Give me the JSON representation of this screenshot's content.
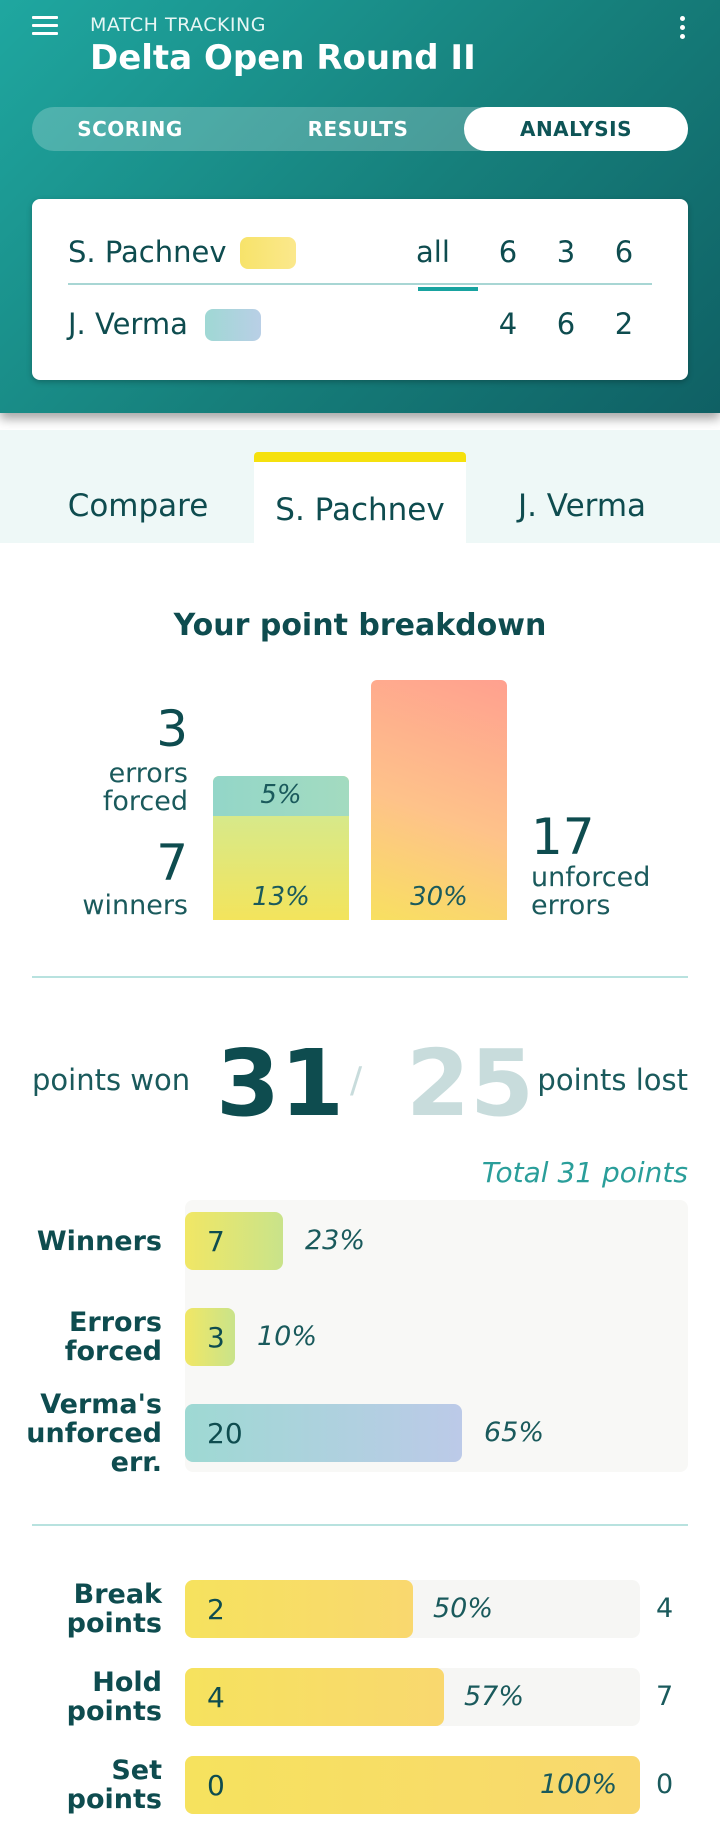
{
  "header": {
    "subtitle": "MATCH TRACKING",
    "title": "Delta Open Round II",
    "tabs": [
      {
        "label": "SCORING"
      },
      {
        "label": "RESULTS"
      },
      {
        "label": "ANALYSIS",
        "active": true
      }
    ]
  },
  "scoreboard": {
    "all_label": "all",
    "players": [
      {
        "name": "S. Pachnev",
        "color": "#f7e36a",
        "sets": [
          "6",
          "3",
          "6"
        ]
      },
      {
        "name": "J. Verma",
        "color": "#a8d6de",
        "sets": [
          "4",
          "6",
          "2"
        ]
      }
    ]
  },
  "player_tabs": [
    {
      "label": "Compare"
    },
    {
      "label": "S. Pachnev",
      "active": true
    },
    {
      "label": "J. Verma"
    }
  ],
  "breakdown": {
    "title": "Your point breakdown",
    "errors_forced": {
      "value": "3",
      "label_line1": "errors",
      "label_line2": "forced",
      "pct": "5%"
    },
    "winners": {
      "value": "7",
      "label": "winners",
      "pct": "13%"
    },
    "unforced_errors": {
      "value": "17",
      "label_line1": "unforced",
      "label_line2": "errors",
      "pct": "30%"
    }
  },
  "points": {
    "won_label": "points won",
    "won": "31",
    "separator": "/",
    "lost": "25",
    "lost_label": "points lost",
    "total_label": "Total 31 points"
  },
  "won_breakdown": [
    {
      "label_lines": [
        "Winners"
      ],
      "value": "7",
      "pct": "23%",
      "fraction": 0.23,
      "style": "green"
    },
    {
      "label_lines": [
        "Errors",
        "forced"
      ],
      "value": "3",
      "pct": "10%",
      "fraction": 0.1,
      "style": "green"
    },
    {
      "label_lines": [
        "Verma's",
        "unforced",
        "err."
      ],
      "value": "20",
      "pct": "65%",
      "fraction": 0.65,
      "style": "blue"
    }
  ],
  "pressure_points": [
    {
      "label_lines": [
        "Break",
        "points"
      ],
      "value": "2",
      "pct": "50%",
      "total": "4",
      "fraction": 0.5
    },
    {
      "label_lines": [
        "Hold",
        "points"
      ],
      "value": "4",
      "pct": "57%",
      "total": "7",
      "fraction": 0.57
    },
    {
      "label_lines": [
        "Set",
        "points"
      ],
      "value": "0",
      "pct": "100%",
      "total": "0",
      "fraction": 1.0
    }
  ]
}
